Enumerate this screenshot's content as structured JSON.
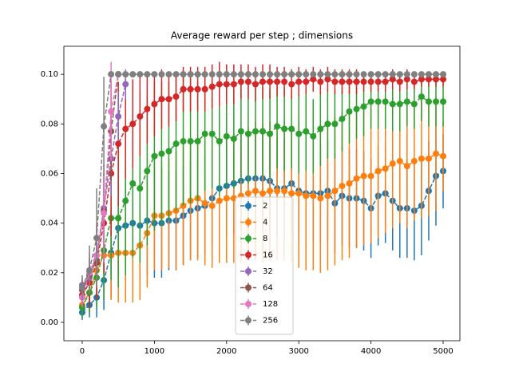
{
  "chart_data": {
    "type": "errorbar",
    "title": "Average reward per step ; dimensions",
    "x": [
      0,
      100,
      200,
      300,
      400,
      500,
      600,
      700,
      800,
      900,
      1000,
      1100,
      1200,
      1300,
      1400,
      1500,
      1600,
      1700,
      1800,
      1900,
      2000,
      2100,
      2200,
      2300,
      2400,
      2500,
      2600,
      2700,
      2800,
      2900,
      3000,
      3100,
      3200,
      3300,
      3400,
      3500,
      3600,
      3700,
      3800,
      3900,
      4000,
      4100,
      4200,
      4300,
      4400,
      4500,
      4600,
      4700,
      4800,
      4900,
      5000
    ],
    "xlim": [
      -254,
      5232
    ],
    "xticks": [
      0,
      1000,
      2000,
      3000,
      4000,
      5000
    ],
    "ylim": [
      -0.0074,
      0.1113
    ],
    "yticks": [
      {
        "value": 0,
        "label": "0.00"
      },
      {
        "value": 0.02,
        "label": "0.02"
      },
      {
        "value": 0.04,
        "label": "0.04"
      },
      {
        "value": 0.06,
        "label": "0.06"
      },
      {
        "value": 0.08,
        "label": "0.08"
      },
      {
        "value": 0.1,
        "label": "0.10"
      }
    ],
    "legend": "lower center",
    "series": [
      {
        "name": "2",
        "color": "#1f77b4",
        "values": [
          0.004,
          0.007,
          0.01,
          0.017,
          0.028,
          0.038,
          0.039,
          0.04,
          0.039,
          0.041,
          0.04,
          0.04,
          0.041,
          0.041,
          0.043,
          0.045,
          0.046,
          0.047,
          0.05,
          0.054,
          0.055,
          0.056,
          0.057,
          0.058,
          0.058,
          0.058,
          0.057,
          0.054,
          0.054,
          0.056,
          0.053,
          0.052,
          0.052,
          0.052,
          0.053,
          0.048,
          0.051,
          0.05,
          0.05,
          0.049,
          0.046,
          0.051,
          0.052,
          0.049,
          0.046,
          0.046,
          0.045,
          0.047,
          0.053,
          0.059,
          0.061
        ],
        "errors": [
          0.003,
          0.005,
          0.008,
          0.012,
          0.018,
          0.02,
          0.022,
          0.022,
          0.022,
          0.022,
          0.022,
          0.022,
          0.02,
          0.02,
          0.02,
          0.02,
          0.02,
          0.02,
          0.02,
          0.02,
          0.02,
          0.02,
          0.02,
          0.02,
          0.02,
          0.02,
          0.02,
          0.02,
          0.02,
          0.02,
          0.02,
          0.02,
          0.02,
          0.02,
          0.02,
          0.02,
          0.02,
          0.02,
          0.02,
          0.02,
          0.02,
          0.02,
          0.02,
          0.02,
          0.02,
          0.02,
          0.02,
          0.02,
          0.02,
          0.02,
          0.015
        ]
      },
      {
        "name": "4",
        "color": "#ff7f0e",
        "values": [
          0.007,
          0.012,
          0.021,
          0.027,
          0.027,
          0.028,
          0.028,
          0.028,
          0.031,
          0.036,
          0.043,
          0.043,
          0.044,
          0.045,
          0.047,
          0.049,
          0.05,
          0.048,
          0.047,
          0.049,
          0.05,
          0.05,
          0.051,
          0.052,
          0.053,
          0.052,
          0.053,
          0.053,
          0.053,
          0.052,
          0.052,
          0.051,
          0.051,
          0.05,
          0.051,
          0.053,
          0.055,
          0.056,
          0.058,
          0.059,
          0.059,
          0.061,
          0.062,
          0.064,
          0.065,
          0.063,
          0.065,
          0.066,
          0.066,
          0.068,
          0.067
        ],
        "errors": [
          0.004,
          0.008,
          0.012,
          0.015,
          0.018,
          0.02,
          0.02,
          0.02,
          0.022,
          0.022,
          0.022,
          0.022,
          0.022,
          0.024,
          0.024,
          0.024,
          0.025,
          0.025,
          0.025,
          0.025,
          0.026,
          0.026,
          0.027,
          0.027,
          0.028,
          0.028,
          0.028,
          0.028,
          0.028,
          0.028,
          0.03,
          0.03,
          0.03,
          0.03,
          0.03,
          0.03,
          0.03,
          0.03,
          0.028,
          0.028,
          0.027,
          0.027,
          0.026,
          0.026,
          0.025,
          0.025,
          0.024,
          0.024,
          0.023,
          0.023,
          0.014
        ]
      },
      {
        "name": "8",
        "color": "#2ca02c",
        "values": [
          0.006,
          0.012,
          0.018,
          0.029,
          0.042,
          0.042,
          0.049,
          0.056,
          0.054,
          0.061,
          0.067,
          0.068,
          0.069,
          0.072,
          0.073,
          0.073,
          0.073,
          0.076,
          0.076,
          0.073,
          0.075,
          0.074,
          0.077,
          0.076,
          0.077,
          0.077,
          0.076,
          0.079,
          0.078,
          0.078,
          0.076,
          0.077,
          0.075,
          0.078,
          0.08,
          0.08,
          0.082,
          0.085,
          0.086,
          0.087,
          0.089,
          0.089,
          0.089,
          0.088,
          0.088,
          0.089,
          0.088,
          0.091,
          0.089,
          0.089,
          0.089
        ],
        "errors": [
          0.004,
          0.008,
          0.012,
          0.02,
          0.025,
          0.028,
          0.03,
          0.03,
          0.03,
          0.03,
          0.03,
          0.029,
          0.028,
          0.027,
          0.026,
          0.025,
          0.024,
          0.023,
          0.022,
          0.022,
          0.021,
          0.02,
          0.02,
          0.02,
          0.019,
          0.018,
          0.018,
          0.017,
          0.017,
          0.016,
          0.016,
          0.016,
          0.015,
          0.015,
          0.014,
          0.014,
          0.013,
          0.013,
          0.012,
          0.012,
          0.011,
          0.011,
          0.011,
          0.011,
          0.011,
          0.01,
          0.01,
          0.01,
          0.01,
          0.01,
          0.01
        ]
      },
      {
        "name": "16",
        "color": "#d62728",
        "values": [
          0.011,
          0.016,
          0.024,
          0.04,
          0.06,
          0.072,
          0.078,
          0.08,
          0.083,
          0.086,
          0.088,
          0.09,
          0.09,
          0.091,
          0.094,
          0.094,
          0.094,
          0.094,
          0.095,
          0.096,
          0.096,
          0.096,
          0.097,
          0.097,
          0.096,
          0.097,
          0.097,
          0.097,
          0.097,
          0.096,
          0.097,
          0.097,
          0.098,
          0.097,
          0.098,
          0.097,
          0.097,
          0.097,
          0.097,
          0.097,
          0.097,
          0.097,
          0.097,
          0.098,
          0.097,
          0.098,
          0.097,
          0.098,
          0.098,
          0.098,
          0.098
        ],
        "errors": [
          0.005,
          0.01,
          0.015,
          0.02,
          0.025,
          0.025,
          0.02,
          0.018,
          0.016,
          0.014,
          0.013,
          0.012,
          0.011,
          0.01,
          0.009,
          0.009,
          0.009,
          0.009,
          0.009,
          0.009,
          0.008,
          0.008,
          0.007,
          0.007,
          0.007,
          0.007,
          0.007,
          0.006,
          0.006,
          0.006,
          0.006,
          0.005,
          0.005,
          0.005,
          0.005,
          0.005,
          0.005,
          0.005,
          0.005,
          0.004,
          0.004,
          0.004,
          0.004,
          0.004,
          0.004,
          0.004,
          0.003,
          0.003,
          0.003,
          0.003,
          0.003
        ]
      },
      {
        "name": "32",
        "color": "#9467bd",
        "x": [
          0,
          100,
          200,
          300,
          400,
          500,
          600
        ],
        "values": [
          0.015,
          0.018,
          0.027,
          0.046,
          0.066,
          0.083,
          0.096
        ],
        "errors": [
          0.003,
          0.005,
          0.008,
          0.012,
          0.015,
          0.01,
          0.006
        ]
      },
      {
        "name": "64",
        "color": "#8c564b",
        "x": [
          0,
          100,
          200,
          300,
          400,
          500
        ],
        "values": [
          0.013,
          0.019,
          0.025,
          0.045,
          0.077,
          0.1
        ],
        "errors": [
          0.004,
          0.006,
          0.01,
          0.015,
          0.02,
          0
        ]
      },
      {
        "name": "128",
        "color": "#e377c2",
        "x": [
          0,
          100,
          200,
          300,
          400,
          500
        ],
        "values": [
          0.01,
          0.02,
          0.027,
          0.044,
          0.085,
          0.1
        ],
        "errors": [
          0.004,
          0.008,
          0.012,
          0.02,
          0.02,
          0
        ]
      },
      {
        "name": "256",
        "color": "#7f7f7f",
        "values": [
          0.014,
          0.021,
          0.034,
          0.079,
          0.1,
          0.1,
          0.1,
          0.1,
          0.1,
          0.1,
          0.1,
          0.1,
          0.1,
          0.1,
          0.1,
          0.1,
          0.1,
          0.1,
          0.1,
          0.1,
          0.1,
          0.1,
          0.1,
          0.1,
          0.1,
          0.1,
          0.1,
          0.1,
          0.1,
          0.1,
          0.1,
          0.1,
          0.1,
          0.1,
          0.1,
          0.1,
          0.1,
          0.1,
          0.1,
          0.1,
          0.1,
          0.1,
          0.1,
          0.1,
          0.1,
          0.1,
          0.1,
          0.1,
          0.1,
          0.1,
          0.1
        ],
        "errors": [
          0.005,
          0.01,
          0.02,
          0.02,
          0,
          0,
          0,
          0,
          0,
          0,
          0,
          0,
          0,
          0,
          0,
          0,
          0,
          0,
          0,
          0,
          0,
          0,
          0,
          0,
          0,
          0,
          0,
          0,
          0,
          0,
          0,
          0,
          0,
          0,
          0,
          0,
          0,
          0,
          0,
          0,
          0,
          0,
          0,
          0,
          0,
          0,
          0,
          0,
          0,
          0,
          0
        ]
      }
    ]
  }
}
